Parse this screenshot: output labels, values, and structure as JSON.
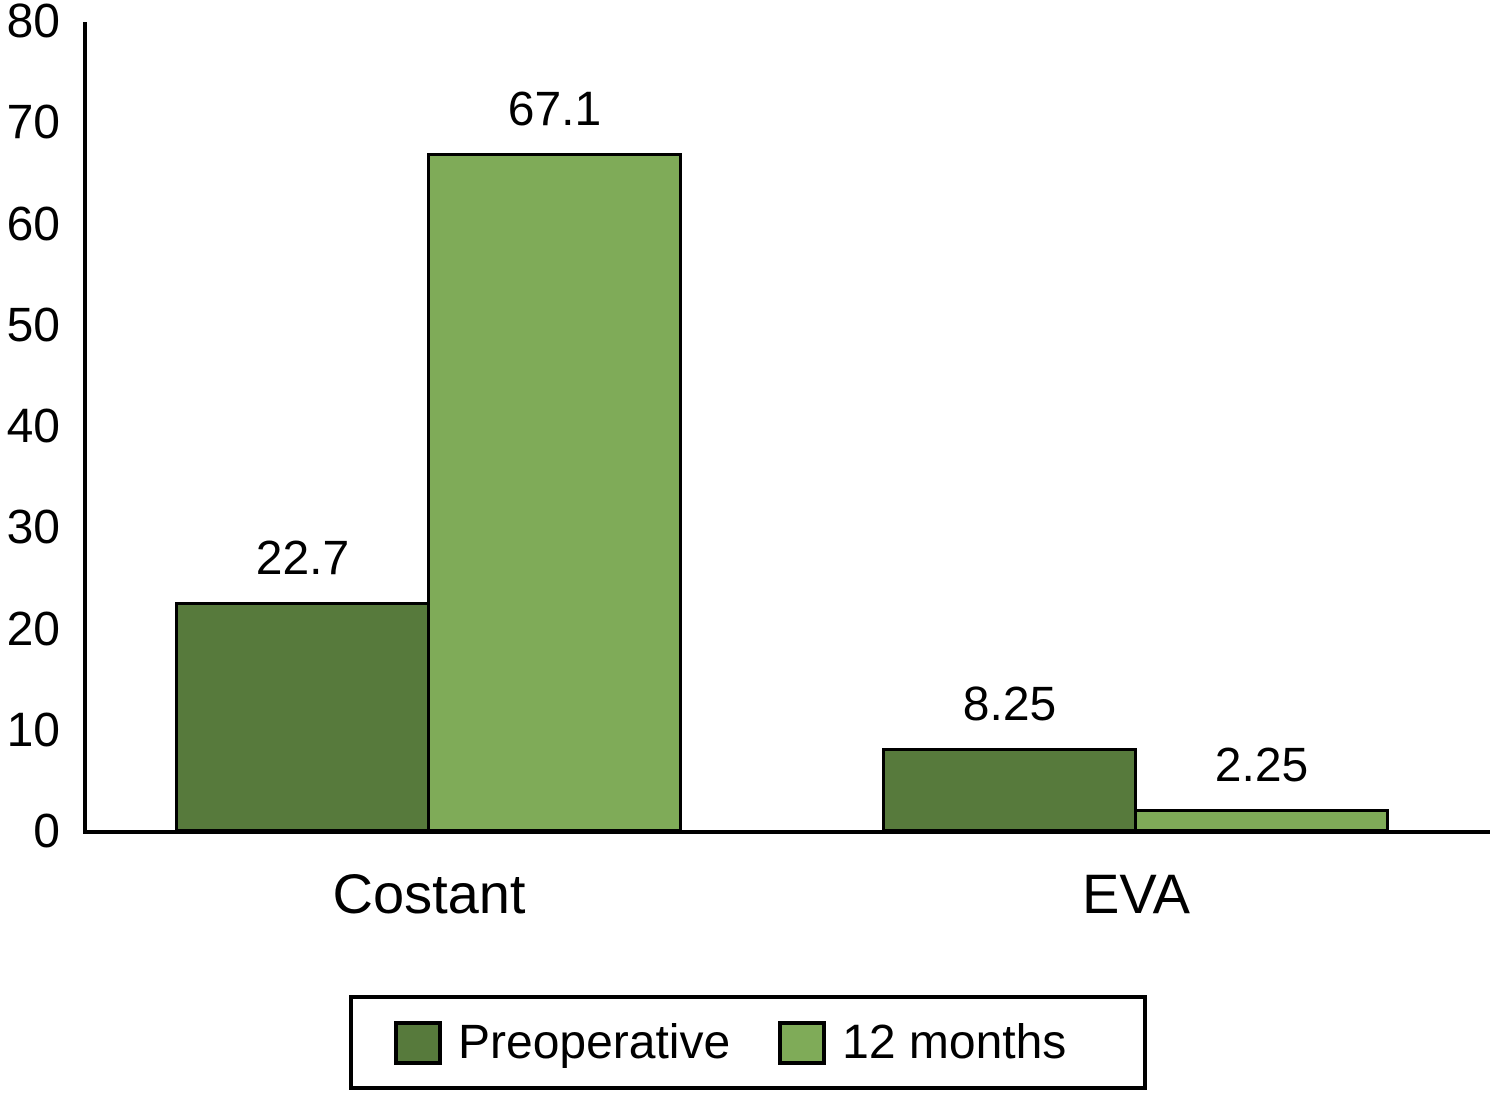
{
  "chart_data": {
    "type": "bar",
    "categories": [
      "Costant",
      "EVA"
    ],
    "series": [
      {
        "name": "Preoperative",
        "color": "#577A3C",
        "values": [
          22.7,
          8.25
        ],
        "value_labels": [
          "22.7",
          "8.25"
        ]
      },
      {
        "name": "12 months",
        "color": "#7FAB58",
        "values": [
          67.1,
          2.25
        ],
        "value_labels": [
          "67.1",
          "2.25"
        ]
      }
    ],
    "title": "",
    "xlabel": "",
    "ylabel": "",
    "ylim": [
      0,
      80
    ],
    "yticks": [
      "0",
      "10",
      "20",
      "30",
      "40",
      "50",
      "60",
      "70",
      "80"
    ],
    "grid": false,
    "value_labels_shown": true,
    "legend_position": "bottom"
  },
  "colors": {
    "background": "#ffffff",
    "axis": "#000000",
    "text": "#000000",
    "bar_border": "#000000",
    "legend_border": "#000000",
    "series_dark": "#577A3C",
    "series_light": "#7FAB58"
  }
}
